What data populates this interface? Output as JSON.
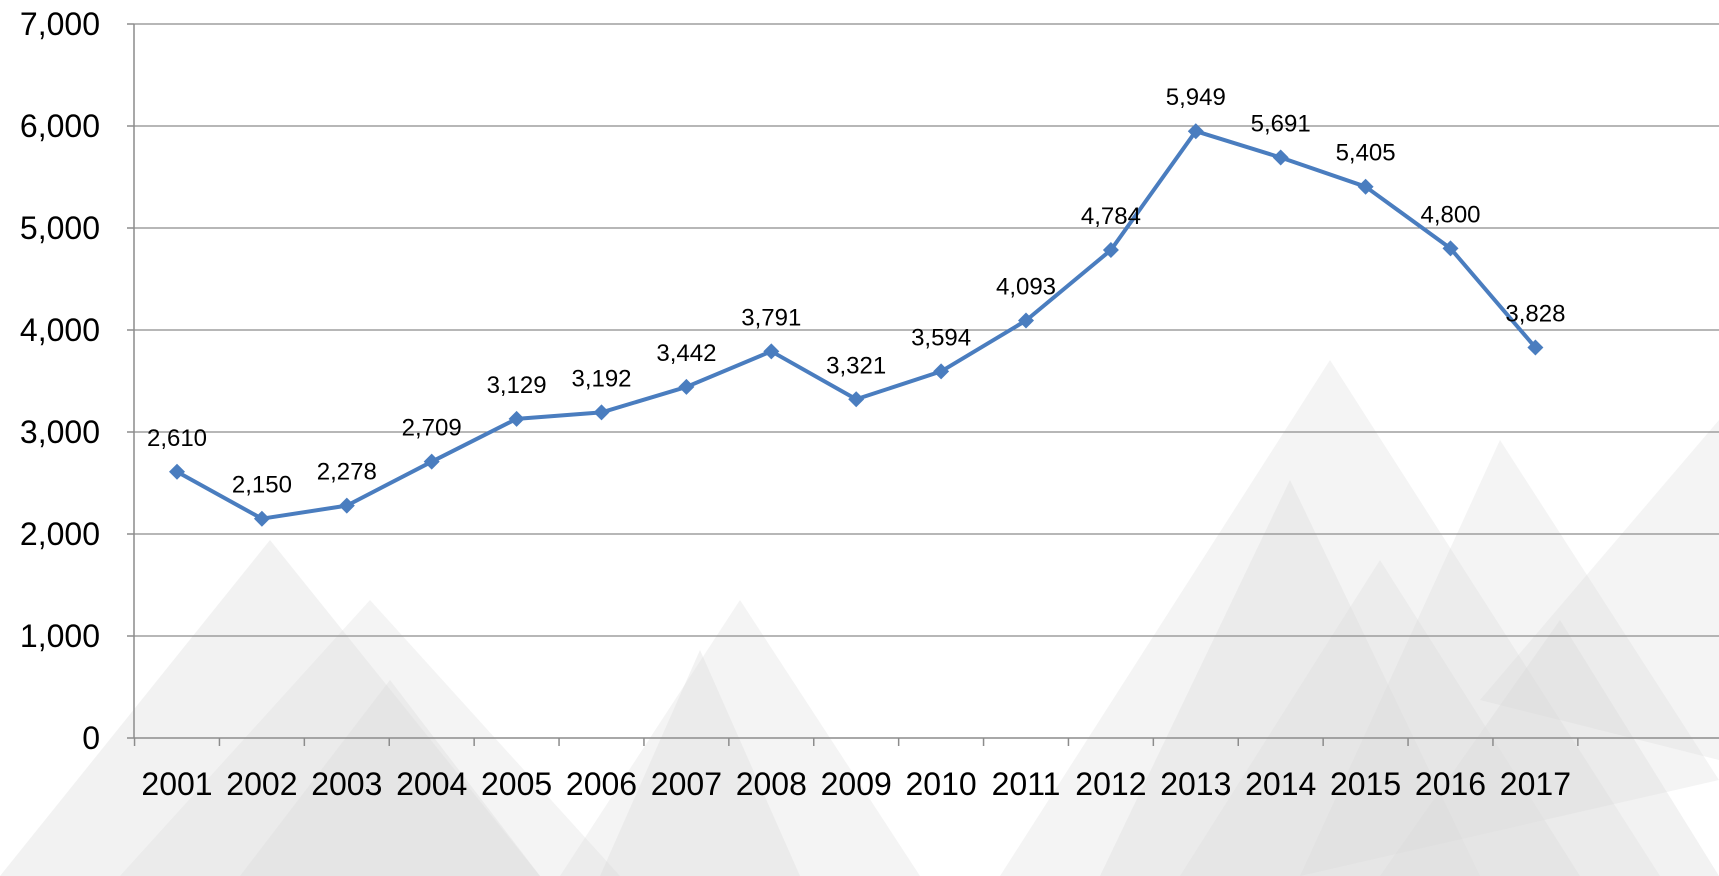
{
  "chart_data": {
    "type": "line",
    "title": "",
    "xlabel": "",
    "ylabel": "",
    "categories": [
      "2001",
      "2002",
      "2003",
      "2004",
      "2005",
      "2006",
      "2007",
      "2008",
      "2009",
      "2010",
      "2011",
      "2012",
      "2013",
      "2014",
      "2015",
      "2016",
      "2017"
    ],
    "series": [
      {
        "values": [
          2610,
          2150,
          2278,
          2709,
          3129,
          3192,
          3442,
          3791,
          3321,
          3594,
          4093,
          4784,
          5949,
          5691,
          5405,
          4800,
          3828
        ],
        "labels": [
          "2,610",
          "2,150",
          "2,278",
          "2,709",
          "3,129",
          "3,192",
          "3,442",
          "3,791",
          "3,321",
          "3,594",
          "4,093",
          "4,784",
          "5,949",
          "5,691",
          "5,405",
          "4,800",
          "3,828"
        ],
        "color": "#4a7dbf",
        "marker": "diamond"
      }
    ],
    "ylim": [
      0,
      7000
    ],
    "yticks": [
      0,
      1000,
      2000,
      3000,
      4000,
      5000,
      6000,
      7000
    ],
    "ytick_labels": [
      "0",
      "1,000",
      "2,000",
      "3,000",
      "4,000",
      "5,000",
      "6,000",
      "7,000"
    ],
    "grid": true,
    "legend": "none",
    "data_labels": "above"
  },
  "colors": {
    "series": "#4a7dbf",
    "grid": "#8c8c8c",
    "background_pattern": "#d9d9d9"
  }
}
